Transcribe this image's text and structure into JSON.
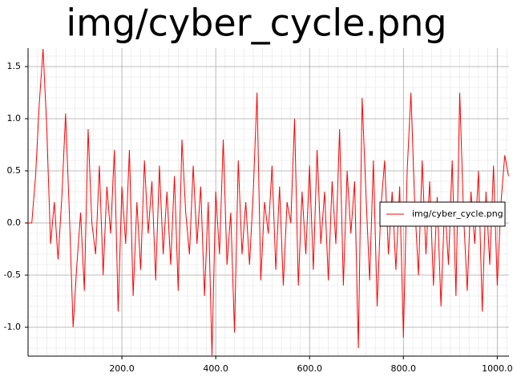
{
  "chart_data": {
    "type": "line",
    "title": "img/cyber_cycle.png",
    "x": [
      0,
      8,
      16,
      24,
      32,
      40,
      48,
      56,
      64,
      72,
      80,
      88,
      96,
      104,
      112,
      120,
      128,
      136,
      144,
      152,
      160,
      168,
      176,
      184,
      192,
      200,
      208,
      216,
      224,
      232,
      240,
      248,
      256,
      264,
      272,
      280,
      288,
      296,
      304,
      312,
      320,
      328,
      336,
      344,
      352,
      360,
      368,
      376,
      384,
      392,
      400,
      408,
      416,
      424,
      432,
      440,
      448,
      456,
      464,
      472,
      480,
      488,
      496,
      504,
      512,
      520,
      528,
      536,
      544,
      552,
      560,
      568,
      576,
      584,
      592,
      600,
      608,
      616,
      624,
      632,
      640,
      648,
      656,
      664,
      672,
      680,
      688,
      696,
      704,
      712,
      720,
      728,
      736,
      744,
      752,
      760,
      768,
      776,
      784,
      792,
      800,
      808,
      816,
      824,
      832,
      840,
      848,
      856,
      864,
      872,
      880,
      888,
      896,
      904,
      912,
      920,
      928,
      936,
      944,
      952,
      960,
      968,
      976,
      984,
      992,
      1000,
      1008,
      1016,
      1024
    ],
    "series": [
      {
        "name": "img/cyber_cycle.png",
        "color": "#ff0000",
        "values": [
          0,
          0,
          0.45,
          1.15,
          1.67,
          0.9,
          -0.2,
          0.2,
          -0.35,
          0.25,
          1.05,
          0.1,
          -1.0,
          -0.4,
          0.1,
          -0.65,
          0.9,
          0.0,
          -0.3,
          0.55,
          -0.5,
          0.35,
          -0.1,
          0.7,
          -0.85,
          0.35,
          -0.2,
          0.7,
          -0.7,
          0.2,
          -0.45,
          0.6,
          -0.1,
          0.4,
          -0.55,
          0.55,
          -0.3,
          0.3,
          -0.4,
          0.45,
          -0.65,
          0.8,
          0.1,
          -0.3,
          0.55,
          -0.2,
          0.35,
          -0.7,
          0.2,
          -1.27,
          0.3,
          -0.3,
          0.8,
          -0.4,
          0.1,
          -1.05,
          0.6,
          -0.3,
          0.2,
          -0.4,
          0.3,
          1.25,
          -0.55,
          0.2,
          -0.1,
          0.55,
          -0.45,
          0.35,
          -0.6,
          0.2,
          0.0,
          1.0,
          -0.6,
          0.3,
          -0.3,
          0.55,
          -0.45,
          0.7,
          -0.2,
          0.3,
          -0.55,
          0.4,
          -0.2,
          0.9,
          -0.6,
          0.5,
          -0.1,
          0.4,
          -1.2,
          1.2,
          0.3,
          -0.55,
          0.6,
          -0.8,
          0.15,
          0.6,
          -0.3,
          0.3,
          -0.45,
          0.35,
          -1.1,
          0.5,
          1.25,
          0.2,
          -0.5,
          0.6,
          -0.3,
          0.4,
          -0.6,
          0.25,
          -0.8,
          0.2,
          -0.4,
          0.6,
          -0.7,
          1.25,
          0.1,
          -0.65,
          0.3,
          -0.2,
          0.5,
          -0.85,
          0.3,
          -0.4,
          0.55,
          -0.6,
          0.2,
          0.65,
          0.45
        ]
      }
    ],
    "xlim": [
      0,
      1025
    ],
    "ylim": [
      -1.277,
      1.677
    ],
    "xticks": [
      {
        "value": 200,
        "label": "200.0"
      },
      {
        "value": 400,
        "label": "400.0"
      },
      {
        "value": 600,
        "label": "600.0"
      },
      {
        "value": 800,
        "label": "800.0"
      },
      {
        "value": 1000,
        "label": "1000.0"
      }
    ],
    "yticks": [
      {
        "value": -1,
        "label": "-1.0"
      },
      {
        "value": -0.5,
        "label": "-0.5"
      },
      {
        "value": 0,
        "label": "0.0"
      },
      {
        "value": 0.5,
        "label": "0.5"
      },
      {
        "value": 1,
        "label": "1.0"
      },
      {
        "value": 1.5,
        "label": "1.5"
      }
    ],
    "grid": true,
    "minor_grid": true,
    "legend": "right"
  }
}
